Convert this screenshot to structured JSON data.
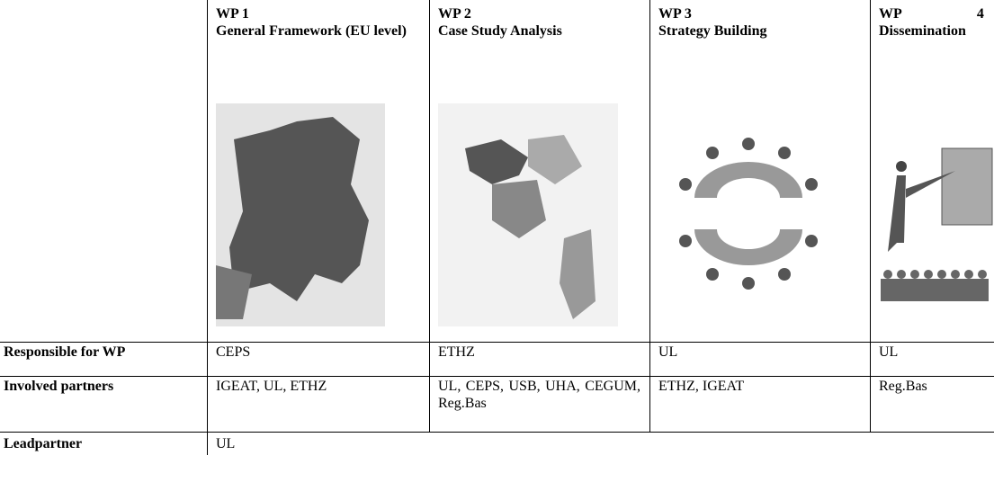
{
  "columns": [
    {
      "number": "WP 1",
      "title": "General Framework (EU level)"
    },
    {
      "number": "WP 2",
      "title": "Case Study Analysis"
    },
    {
      "number": "WP 3",
      "title": "Strategy Building"
    },
    {
      "number": "WP 4",
      "title": "Dissemination"
    }
  ],
  "rows": [
    {
      "label": "Responsible for WP",
      "cells": [
        "CEPS",
        "ETHZ",
        "UL",
        "UL"
      ]
    },
    {
      "label": "Involved partners",
      "cells": [
        "IGEAT, UL, ETHZ",
        "UL, CEPS, USB, UHA, CEGUM, Reg.Bas",
        "ETHZ, IGEAT",
        "Reg.Bas"
      ]
    },
    {
      "label": "Leadpartner",
      "cells": [
        "UL"
      ]
    }
  ]
}
